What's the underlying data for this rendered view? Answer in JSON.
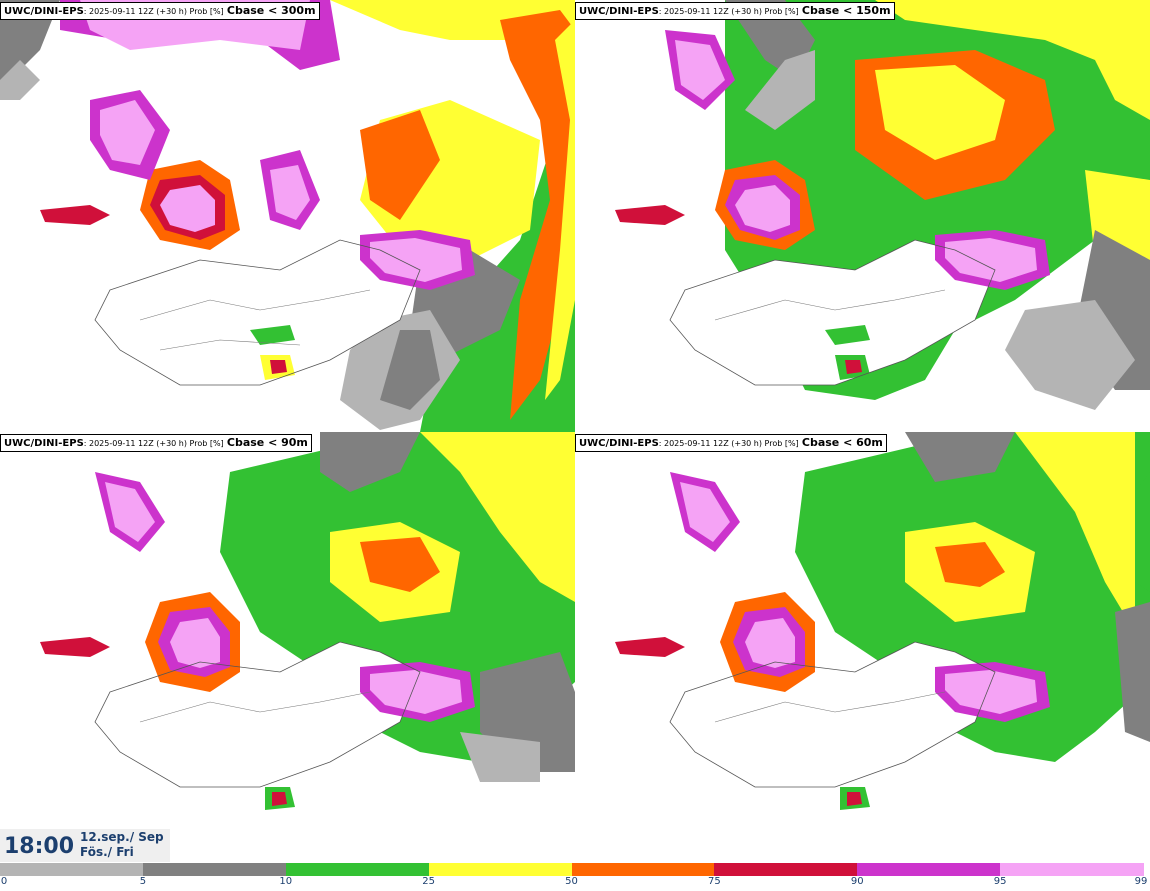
{
  "panels": [
    {
      "model": "UWC/DINI-EPS",
      "meta": ": 2025-09-11 12Z (+30 h) Prob [%]",
      "param": "Cbase < 300m"
    },
    {
      "model": "UWC/DINI-EPS",
      "meta": ": 2025-09-11 12Z (+30 h) Prob [%]",
      "param": "Cbase < 150m"
    },
    {
      "model": "UWC/DINI-EPS",
      "meta": ": 2025-09-11 12Z (+30 h) Prob [%]",
      "param": "Cbase < 90m"
    },
    {
      "model": "UWC/DINI-EPS",
      "meta": ": 2025-09-11 12Z (+30 h) Prob [%]",
      "param": "Cbase < 60m"
    }
  ],
  "valid": {
    "time": "18:00",
    "date_line1": "12.sep./ Sep",
    "date_line2": "Fös./ Fri"
  },
  "colorbar": {
    "ticks": [
      "0",
      "5",
      "10",
      "25",
      "50",
      "75",
      "90",
      "95",
      "99"
    ],
    "colors": [
      "#ffffff",
      "#b4b4b4",
      "#808080",
      "#33c133",
      "#ffff33",
      "#ff6600",
      "#d0103a",
      "#cc33cc",
      "#f5a3f5"
    ]
  }
}
